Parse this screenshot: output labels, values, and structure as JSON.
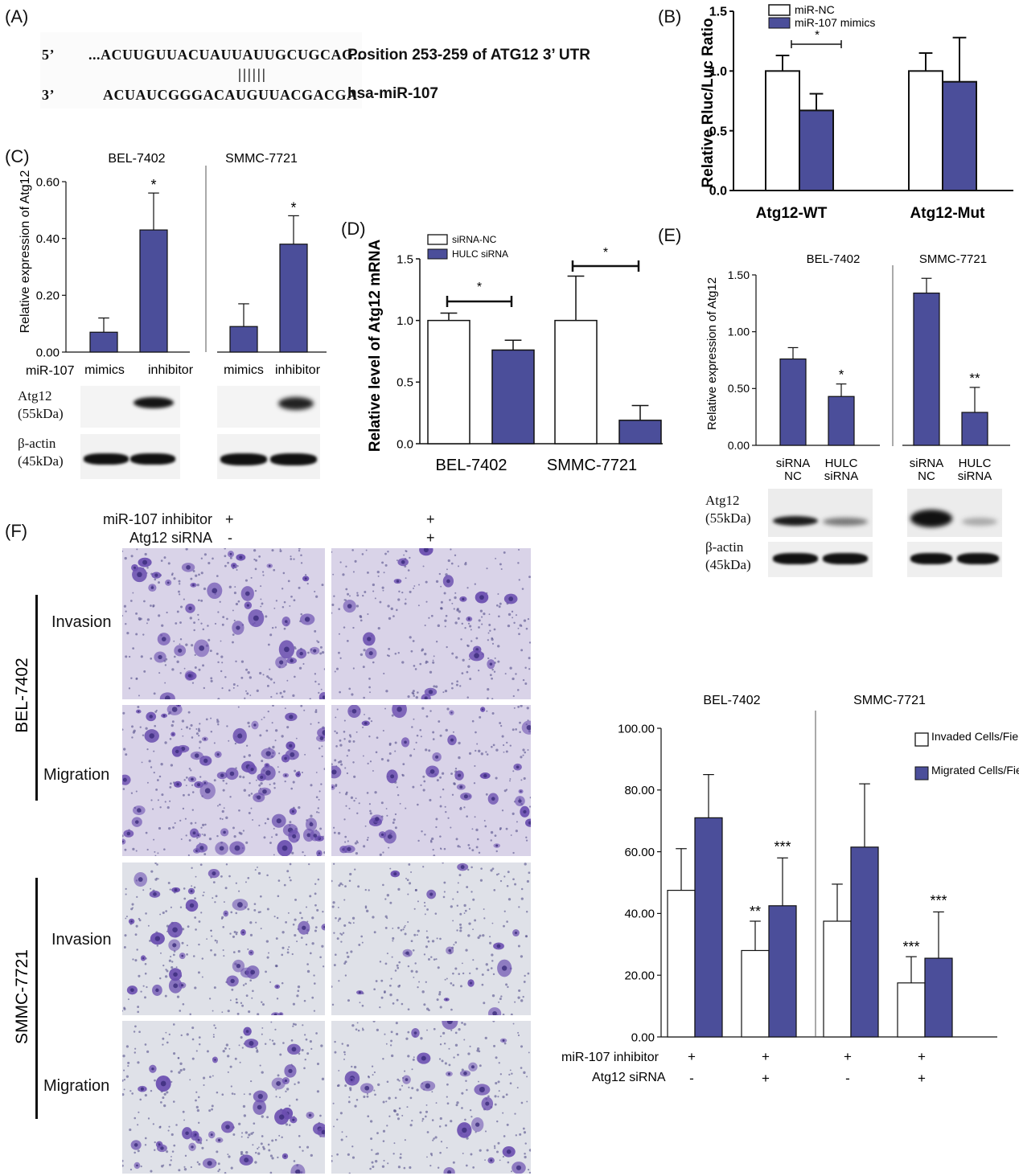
{
  "colors": {
    "bar_fill": "#4B4E9A",
    "bar_edge": "#1a1a1a",
    "stain": "#6b4fb0",
    "membrane_violet": "#d9d3e8",
    "membrane_grey": "#dfe1e8"
  },
  "panelA": {
    "label": "(A)",
    "row1_prefix": "5’",
    "row1_seq": "...ACUUGUUACUAUUAUUGCUGCAG...",
    "row1_note": "Position 253-259 of ATG12 3’ UTR",
    "pairing": "||||||",
    "row2_prefix": "3’",
    "row2_seq": "ACUAUCGGGACAUGUUACGACGA",
    "row2_note": "hsa-miR-107"
  },
  "panelB": {
    "label": "(B)",
    "ylabel": "Relative Rluc/Luc Ratio",
    "legend": [
      "miR-NC",
      "miR-107 mimics"
    ],
    "categories": [
      "Atg12-WT",
      "Atg12-Mut"
    ],
    "ticks": [
      "0.0",
      "0.5",
      "1.0",
      "1.5"
    ],
    "sig": "*"
  },
  "panelC": {
    "label": "(C)",
    "ylabel": "Relative expression of Atg12",
    "cells": [
      "BEL-7402",
      "SMMC-7721"
    ],
    "ticks": [
      "0.00",
      "0.20",
      "0.40",
      "0.60"
    ],
    "row_label": "miR-107",
    "x_labels": [
      "mimics",
      "inhibitor",
      "mimics",
      "inhibitor"
    ],
    "sig": [
      "*",
      "*"
    ],
    "blot_labels": [
      "Atg12",
      "(55kDa)",
      "β-actin",
      "(45kDa)"
    ]
  },
  "panelD": {
    "label": "(D)",
    "ylabel": "Relative level of Atg12 mRNA",
    "legend": [
      "siRNA-NC",
      "HULC siRNA"
    ],
    "categories": [
      "BEL-7402",
      "SMMC-7721"
    ],
    "ticks": [
      "0.0",
      "0.5",
      "1.0",
      "1.5"
    ],
    "sig": [
      "*",
      "*"
    ]
  },
  "panelE": {
    "label": "(E)",
    "ylabel": "Relative expression of Atg12",
    "cells": [
      "BEL-7402",
      "SMMC-7721"
    ],
    "ticks": [
      "0.00",
      "0.50",
      "1.00",
      "1.50"
    ],
    "x_labels": [
      [
        "siRNA",
        "NC"
      ],
      [
        "HULC",
        "siRNA"
      ],
      [
        "siRNA",
        "NC"
      ],
      [
        "HULC",
        "siRNA"
      ]
    ],
    "sig": [
      "*",
      "**"
    ],
    "blot_labels": [
      "Atg12",
      "(55kDa)",
      "β-actin",
      "(45kDa)"
    ]
  },
  "panelF": {
    "label": "(F)",
    "header_rows": [
      "miR-107 inhibitor",
      "Atg12 siRNA"
    ],
    "header_signs": [
      [
        "+",
        "+"
      ],
      [
        "-",
        "+"
      ]
    ],
    "cell_lines": [
      "BEL-7402",
      "SMMC-7721"
    ],
    "row_labels": [
      "Invasion",
      "Migration",
      "Invasion",
      "Migration"
    ],
    "chart_cells": [
      "BEL-7402",
      "SMMC-7721"
    ],
    "ticks": [
      "0.00",
      "20.00",
      "40.00",
      "60.00",
      "80.00",
      "100.00"
    ],
    "legend": [
      "Invaded Cells/Field",
      "Migrated Cells/Field"
    ],
    "x_row_labels": [
      "miR-107 inhibitor",
      "Atg12 siRNA"
    ],
    "x_signs": [
      [
        "+",
        "+",
        "+",
        "+"
      ],
      [
        "-",
        "+",
        "-",
        "+"
      ]
    ],
    "sig": [
      "**",
      "***",
      "***",
      "***"
    ]
  },
  "chart_data": [
    {
      "type": "bar",
      "panel": "B",
      "categories": [
        "Atg12-WT",
        "Atg12-Mut"
      ],
      "series": [
        {
          "name": "miR-NC",
          "values": [
            1.0,
            1.0
          ],
          "errors": [
            0.13,
            0.15
          ]
        },
        {
          "name": "miR-107 mimics",
          "values": [
            0.67,
            0.91
          ],
          "errors": [
            0.14,
            0.37
          ]
        }
      ],
      "ylabel": "Relative Rluc/Luc Ratio",
      "ylim": [
        0,
        1.5
      ]
    },
    {
      "type": "bar",
      "panel": "C",
      "categories": [
        "BEL-7402 mimics",
        "BEL-7402 inhibitor",
        "SMMC-7721 mimics",
        "SMMC-7721 inhibitor"
      ],
      "values": [
        0.07,
        0.43,
        0.09,
        0.38
      ],
      "errors": [
        0.05,
        0.13,
        0.08,
        0.1
      ],
      "ylabel": "Relative expression of Atg12",
      "ylim": [
        0,
        0.6
      ]
    },
    {
      "type": "bar",
      "panel": "D",
      "categories": [
        "BEL-7402",
        "SMMC-7721"
      ],
      "series": [
        {
          "name": "siRNA-NC",
          "values": [
            1.0,
            1.0
          ],
          "errors": [
            0.06,
            0.36
          ]
        },
        {
          "name": "HULC siRNA",
          "values": [
            0.76,
            0.19
          ],
          "errors": [
            0.08,
            0.12
          ]
        }
      ],
      "ylabel": "Relative level of Atg12 mRNA",
      "ylim": [
        0,
        1.5
      ]
    },
    {
      "type": "bar",
      "panel": "E",
      "categories": [
        "BEL-7402 siRNA NC",
        "BEL-7402 HULC siRNA",
        "SMMC-7721 siRNA NC",
        "SMMC-7721 HULC siRNA"
      ],
      "values": [
        0.76,
        0.43,
        1.34,
        0.29
      ],
      "errors": [
        0.1,
        0.11,
        0.13,
        0.22
      ],
      "ylabel": "Relative expression of Atg12",
      "ylim": [
        0,
        1.5
      ]
    },
    {
      "type": "bar",
      "panel": "F",
      "categories": [
        "BEL-7402 inhibitor",
        "BEL-7402 inhibitor+siRNA",
        "SMMC-7721 inhibitor",
        "SMMC-7721 inhibitor+siRNA"
      ],
      "series": [
        {
          "name": "Invaded Cells/Field",
          "values": [
            47.5,
            28.0,
            37.5,
            17.5
          ],
          "errors": [
            13.5,
            9.5,
            12.0,
            8.5
          ]
        },
        {
          "name": "Migrated Cells/Field",
          "values": [
            71.0,
            42.5,
            61.5,
            25.5
          ],
          "errors": [
            14.0,
            15.5,
            20.5,
            15.0
          ]
        }
      ],
      "ylim": [
        0,
        100
      ]
    }
  ]
}
